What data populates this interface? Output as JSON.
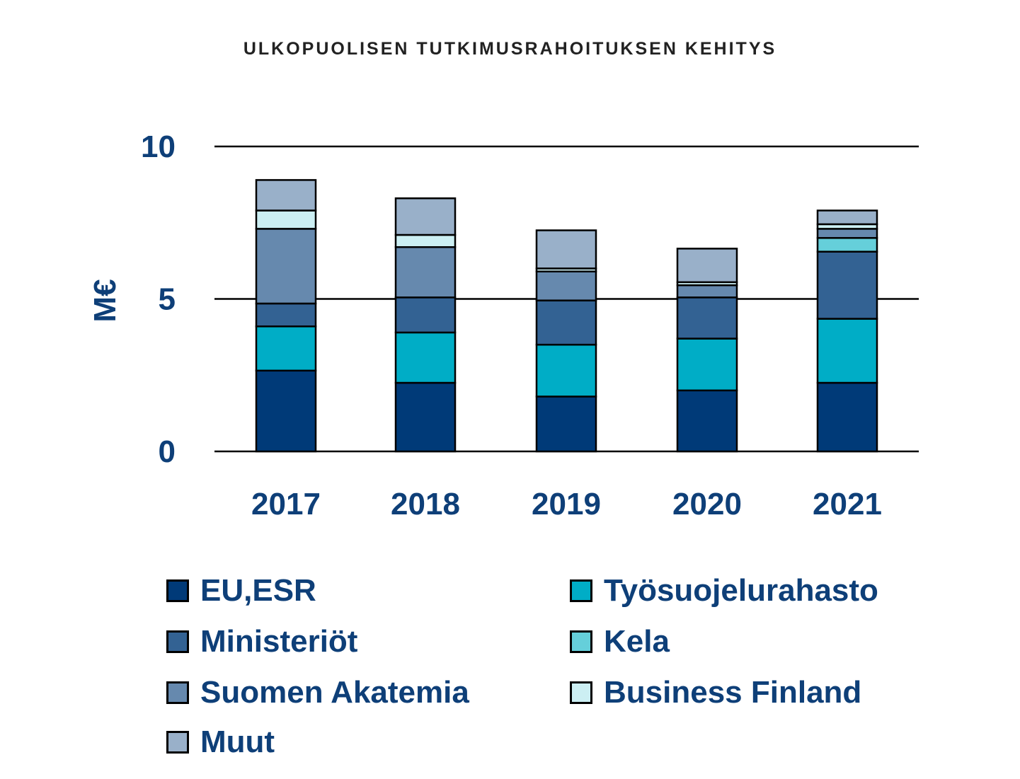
{
  "chart_data": {
    "type": "bar",
    "stacked": true,
    "title": "ULKOPUOLISEN TUTKIMUSRAHOITUKSEN KEHITYS",
    "ylabel": "M€",
    "xlabel": "",
    "ylim": [
      0,
      10
    ],
    "yticks": [
      0,
      5,
      10
    ],
    "grid": true,
    "legend_position": "bottom",
    "categories": [
      "2017",
      "2018",
      "2019",
      "2020",
      "2021"
    ],
    "series": [
      {
        "name": "EU,ESR",
        "color": "#003a78",
        "values": [
          2.65,
          2.25,
          1.8,
          2.0,
          2.25
        ]
      },
      {
        "name": "Työsuojelurahasto",
        "color": "#00adc6",
        "values": [
          1.45,
          1.65,
          1.7,
          1.7,
          2.1
        ]
      },
      {
        "name": "Ministeriöt",
        "color": "#336293",
        "values": [
          0.75,
          1.15,
          1.45,
          1.35,
          2.2
        ]
      },
      {
        "name": "Kela",
        "color": "#65cfda",
        "values": [
          0,
          0,
          0,
          0,
          0.45
        ]
      },
      {
        "name": "Suomen Akatemia",
        "color": "#6689ae",
        "values": [
          2.45,
          1.65,
          0.95,
          0.4,
          0.3
        ]
      },
      {
        "name": "Business Finland",
        "color": "#cceff3",
        "values": [
          0.6,
          0.4,
          0.1,
          0.1,
          0.15
        ]
      },
      {
        "name": "Muut",
        "color": "#99b0c9",
        "values": [
          1.0,
          1.2,
          1.25,
          1.1,
          0.45
        ]
      }
    ]
  },
  "legend": [
    {
      "label": "EU,ESR",
      "color": "#003a78"
    },
    {
      "label": "Työsuojelurahasto",
      "color": "#00adc6"
    },
    {
      "label": "Ministeriöt",
      "color": "#336293"
    },
    {
      "label": "Kela",
      "color": "#65cfda"
    },
    {
      "label": "Suomen Akatemia",
      "color": "#6689ae"
    },
    {
      "label": "Business Finland",
      "color": "#cceff3"
    },
    {
      "label": "Muut",
      "color": "#99b0c9"
    }
  ]
}
